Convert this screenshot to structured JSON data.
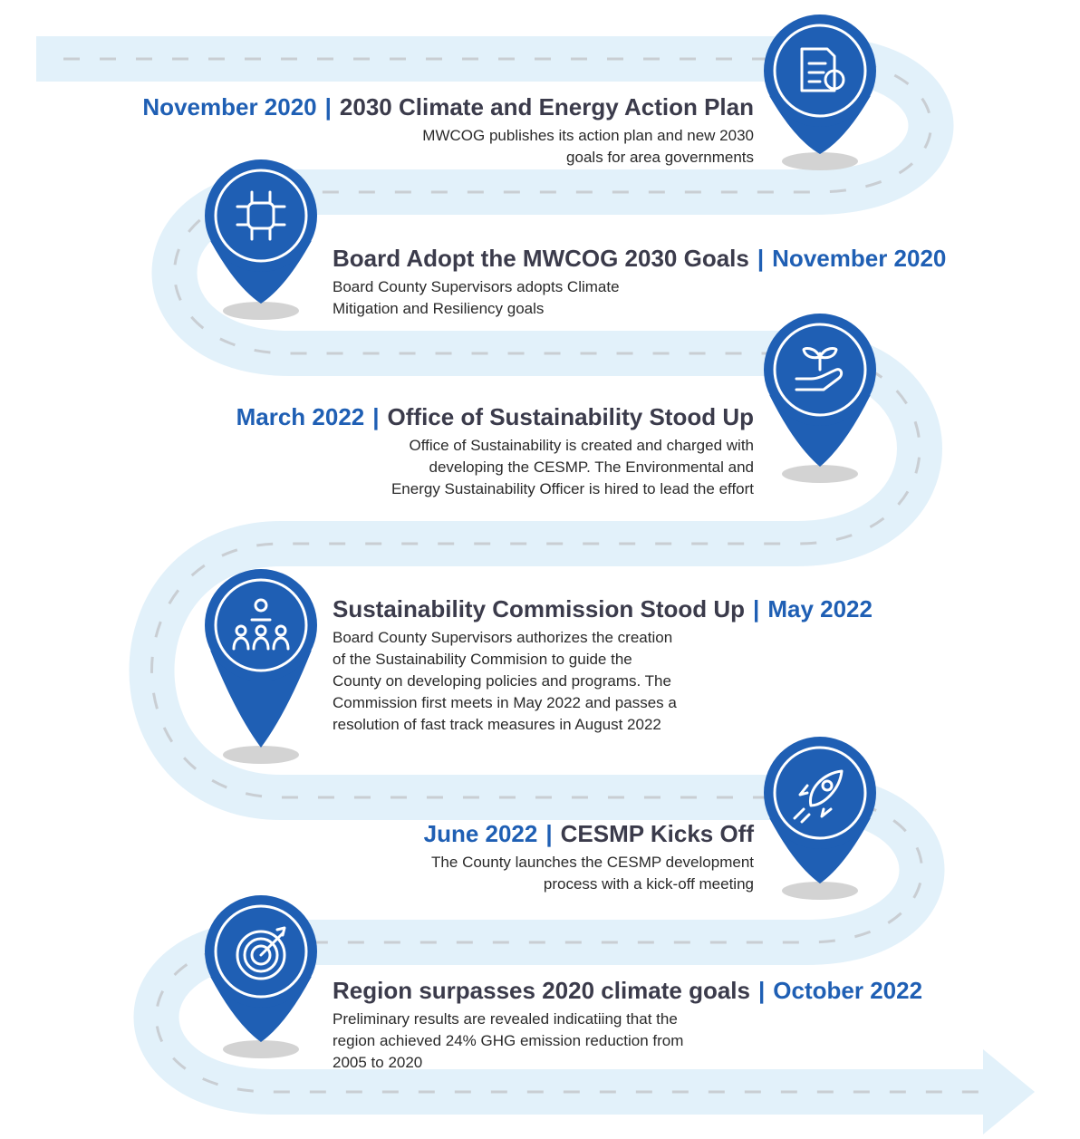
{
  "milestones": [
    {
      "date": "November 2020",
      "separator": "|",
      "title": "2030 Climate and Energy Action Plan",
      "description": [
        "MWCOG publishes its action plan and new 2030",
        "goals for area governments"
      ]
    },
    {
      "date": "November 2020",
      "separator": "|",
      "title": "Board Adopt the MWCOG 2030 Goals",
      "description": [
        "Board County Supervisors adopts Climate",
        "Mitigation and Resiliency goals"
      ]
    },
    {
      "date": "March 2022",
      "separator": "|",
      "title": "Office of Sustainability Stood Up",
      "description": [
        "Office of Sustainability is created and charged with",
        "developing the CESMP. The Environmental and",
        "Energy Sustainability Officer is hired to lead the effort"
      ]
    },
    {
      "date": "May 2022",
      "separator": "|",
      "title": "Sustainability Commission Stood Up",
      "description": [
        "Board County Supervisors authorizes the creation",
        "of the Sustainability Commision to guide the",
        "County on developing policies and programs. The",
        "Commission first meets in May 2022 and passes a",
        "resolution of fast track measures in August 2022"
      ]
    },
    {
      "date": "June 2022",
      "separator": "|",
      "title": "CESMP Kicks Off",
      "description": [
        "The County launches the CESMP development",
        "process with a kick-off meeting"
      ]
    },
    {
      "date": "October 2022",
      "separator": "|",
      "title": "Region surpasses 2020 climate goals",
      "description": [
        "Preliminary results are revealed indicatiing that the",
        "region achieved 24% GHG emission reduction from",
        "2005 to 2020"
      ]
    }
  ]
}
